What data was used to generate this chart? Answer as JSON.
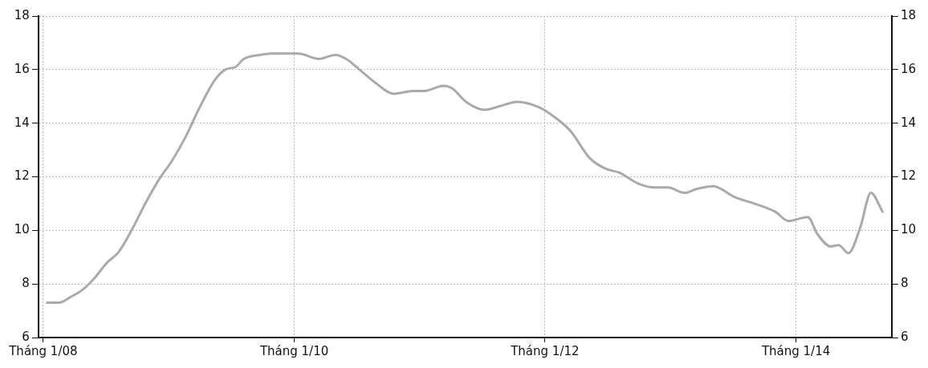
{
  "chart_data": {
    "type": "line",
    "x": [
      "2008-01-12",
      "2008-02-16",
      "2008-03-19",
      "2008-04-26",
      "2008-05-28",
      "2008-07-05",
      "2008-08-08",
      "2008-09-14",
      "2008-10-24",
      "2008-12-03",
      "2009-01-10",
      "2009-02-19",
      "2009-03-28",
      "2009-05-14",
      "2009-06-14",
      "2009-07-14",
      "2009-08-07",
      "2009-09-24",
      "2009-10-26",
      "2010-01-12",
      "2010-03-14",
      "2010-05-01",
      "2010-06-01",
      "2010-07-10",
      "2010-08-26",
      "2010-10-18",
      "2010-12-12",
      "2011-01-14",
      "2011-03-12",
      "2011-04-06",
      "2011-05-16",
      "2011-07-10",
      "2011-08-26",
      "2011-10-12",
      "2011-12-14",
      "2012-02-01",
      "2012-03-16",
      "2012-05-10",
      "2012-06-26",
      "2012-08-05",
      "2012-09-28",
      "2012-11-14",
      "2012-12-24",
      "2013-02-10",
      "2013-03-19",
      "2013-05-05",
      "2013-07-05",
      "2013-09-01",
      "2013-11-01",
      "2013-12-10",
      "2014-02-04",
      "2014-03-05",
      "2014-04-12",
      "2014-05-05",
      "2014-06-03",
      "2014-07-07",
      "2014-08-07",
      "2014-09-10"
    ],
    "series": [
      {
        "color": "#aaaaaa",
        "values": [
          7.3,
          7.3,
          7.5,
          7.8,
          8.2,
          8.8,
          9.2,
          10.0,
          11.0,
          11.9,
          12.6,
          13.5,
          14.5,
          15.6,
          16.0,
          16.1,
          16.4,
          16.55,
          16.6,
          16.6,
          16.4,
          16.55,
          16.4,
          16.0,
          15.5,
          15.1,
          15.2,
          15.2,
          15.4,
          15.3,
          14.8,
          14.5,
          14.65,
          14.8,
          14.6,
          14.2,
          13.7,
          12.7,
          12.3,
          12.15,
          11.75,
          11.6,
          11.6,
          11.4,
          11.55,
          11.65,
          11.25,
          11.0,
          10.7,
          10.35,
          10.5,
          9.85,
          9.4,
          9.45,
          9.15,
          10.1,
          11.4,
          10.7
        ]
      }
    ],
    "xlim": [
      "2007-12-18",
      "2014-10-07"
    ],
    "xticks": [
      {
        "value": "2008-01-01",
        "label": "Tháng 1/08"
      },
      {
        "value": "2010-01-01",
        "label": "Tháng 1/10"
      },
      {
        "value": "2012-01-01",
        "label": "Tháng 1/12"
      },
      {
        "value": "2014-01-01",
        "label": "Tháng 1/14"
      }
    ],
    "ylim": [
      6,
      18
    ],
    "yticks": [
      6,
      8,
      10,
      12,
      14,
      16,
      18
    ],
    "y2lim": [
      6,
      18
    ],
    "y2ticks": [
      6,
      8,
      10,
      12,
      14,
      16,
      18
    ],
    "grid": true,
    "legend": false,
    "marker": "none",
    "line_style": "solid"
  }
}
